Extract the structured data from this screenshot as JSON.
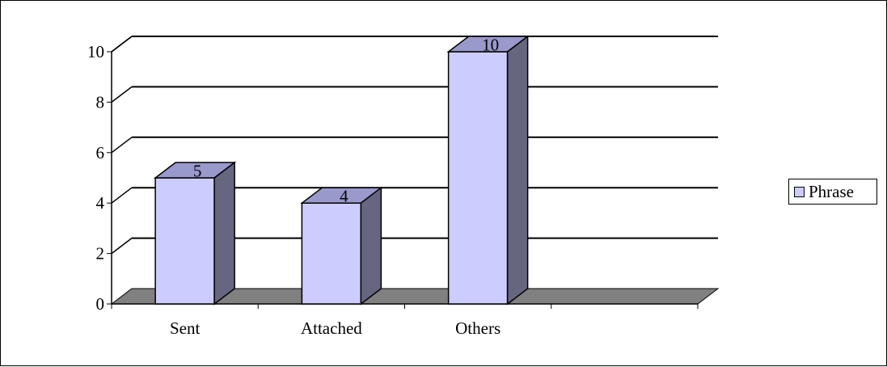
{
  "chart_data": {
    "type": "bar",
    "categories": [
      "Sent",
      "Attached",
      "Others",
      ""
    ],
    "series": [
      {
        "name": "Phrase",
        "values": [
          5,
          4,
          10,
          null
        ]
      }
    ],
    "ylim": [
      0,
      10
    ],
    "yticks": [
      0,
      2,
      4,
      6,
      8,
      10
    ],
    "data_labels": [
      "5",
      "4",
      "10"
    ],
    "grid": true,
    "legend_position": "right",
    "title": "",
    "xlabel": "",
    "ylabel": "",
    "colors": {
      "bar_front": "#ccccff",
      "bar_top": "#9999cc",
      "bar_side": "#666680",
      "floor": "#808080",
      "grid": "#000000"
    }
  },
  "legend": {
    "label": "Phrase"
  }
}
